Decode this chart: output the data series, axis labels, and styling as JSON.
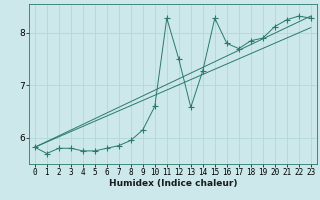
{
  "xlabel": "Humidex (Indice chaleur)",
  "bg_color": "#cce8ea",
  "grid_color": "#b0d8dc",
  "line_color": "#2a7a6a",
  "xlim": [
    -0.5,
    23.5
  ],
  "ylim": [
    5.5,
    8.55
  ],
  "yticks": [
    6,
    7,
    8
  ],
  "xtick_labels": [
    "0",
    "1",
    "2",
    "3",
    "4",
    "5",
    "6",
    "7",
    "8",
    "9",
    "10",
    "11",
    "12",
    "13",
    "14",
    "15",
    "16",
    "17",
    "18",
    "19",
    "20",
    "21",
    "22",
    "23"
  ],
  "curve1_x": [
    0,
    1,
    2,
    3,
    4,
    5,
    6,
    7,
    8,
    9,
    10,
    11,
    12,
    13,
    14,
    15,
    16,
    17,
    18,
    19,
    20,
    21,
    22,
    23
  ],
  "curve1_y": [
    5.82,
    5.7,
    5.8,
    5.8,
    5.75,
    5.75,
    5.8,
    5.85,
    5.95,
    6.15,
    6.6,
    8.28,
    7.5,
    6.58,
    7.28,
    8.28,
    7.8,
    7.7,
    7.85,
    7.9,
    8.12,
    8.25,
    8.32,
    8.28
  ],
  "line1_x": [
    0,
    23
  ],
  "line1_y": [
    5.82,
    8.32
  ],
  "line2_x": [
    0,
    23
  ],
  "line2_y": [
    5.82,
    8.1
  ],
  "marker_size": 2.5,
  "linewidth": 0.7,
  "xlabel_fontsize": 6.5,
  "tick_fontsize": 5.5,
  "ytick_fontsize": 6.5
}
